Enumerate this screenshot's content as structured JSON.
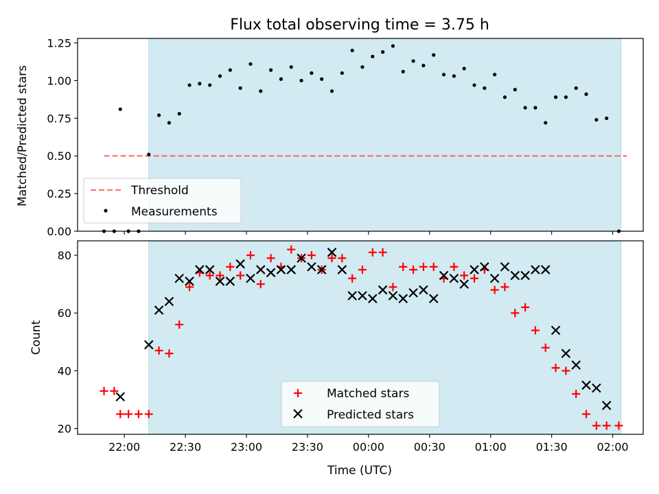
{
  "figure": {
    "title": "Flux total observing time = 3.75 h",
    "xlabel": "Time (UTC)"
  },
  "colors": {
    "band": "#add8e6",
    "threshold": "#ff7070",
    "measurement": "#000000",
    "matched": "#ff0000",
    "predicted": "#000000"
  },
  "chart_data": [
    {
      "type": "scatter",
      "panel": "top",
      "ylabel": "Matched/Predicted stars",
      "ylim": [
        0,
        1.28
      ],
      "yticks": [
        0,
        0.25,
        0.5,
        0.75,
        1.0,
        1.25
      ],
      "ytick_labels": [
        "0.00",
        "0.25",
        "0.50",
        "0.75",
        "1.00",
        "1.25"
      ],
      "xlim": [
        "21:37",
        "02:15"
      ],
      "xticks": [
        "22:00",
        "22:30",
        "23:00",
        "23:30",
        "00:00",
        "00:30",
        "01:00",
        "01:30",
        "02:00"
      ],
      "observing_window": [
        "22:12",
        "02:04"
      ],
      "threshold": {
        "name": "Threshold",
        "value": 0.5,
        "x_range": [
          "21:50",
          "02:07"
        ],
        "style": "dashed"
      },
      "legend": "lower-left",
      "series": [
        {
          "name": "Measurements",
          "x": [
            "21:50",
            "21:55",
            "21:58",
            "22:02",
            "22:07",
            "22:12",
            "22:17",
            "22:22",
            "22:27",
            "22:32",
            "22:37",
            "22:42",
            "22:47",
            "22:52",
            "22:57",
            "23:02",
            "23:07",
            "23:12",
            "23:17",
            "23:22",
            "23:27",
            "23:32",
            "23:37",
            "23:42",
            "23:47",
            "23:52",
            "23:57",
            "00:02",
            "00:07",
            "00:12",
            "00:17",
            "00:22",
            "00:27",
            "00:32",
            "00:37",
            "00:42",
            "00:47",
            "00:52",
            "00:57",
            "01:02",
            "01:07",
            "01:12",
            "01:17",
            "01:22",
            "01:27",
            "01:32",
            "01:37",
            "01:42",
            "01:47",
            "01:52",
            "01:57",
            "02:03"
          ],
          "y": [
            0,
            0,
            0.81,
            0,
            0,
            0.51,
            0.77,
            0.72,
            0.78,
            0.97,
            0.98,
            0.97,
            1.03,
            1.07,
            0.95,
            1.11,
            0.93,
            1.07,
            1.01,
            1.09,
            1.0,
            1.05,
            1.01,
            0.93,
            1.05,
            1.2,
            1.09,
            1.16,
            1.19,
            1.23,
            1.06,
            1.13,
            1.1,
            1.17,
            1.04,
            1.03,
            1.08,
            0.97,
            0.95,
            1.04,
            0.89,
            0.94,
            0.82,
            0.82,
            0.72,
            0.89,
            0.89,
            0.95,
            0.91,
            0.74,
            0.75,
            0
          ]
        }
      ]
    },
    {
      "type": "scatter",
      "panel": "bottom",
      "ylabel": "Count",
      "ylim": [
        18,
        85
      ],
      "yticks": [
        20,
        40,
        60,
        80
      ],
      "ytick_labels": [
        "20",
        "40",
        "60",
        "80"
      ],
      "xlim": [
        "21:37",
        "02:15"
      ],
      "xticks": [
        "22:00",
        "22:30",
        "23:00",
        "23:30",
        "00:00",
        "00:30",
        "01:00",
        "01:30",
        "02:00"
      ],
      "observing_window": [
        "22:12",
        "02:04"
      ],
      "legend": "lower-center",
      "series": [
        {
          "name": "Matched stars",
          "marker": "plus",
          "x": [
            "21:50",
            "21:55",
            "21:58",
            "22:02",
            "22:07",
            "22:12",
            "22:17",
            "22:22",
            "22:27",
            "22:32",
            "22:37",
            "22:42",
            "22:47",
            "22:52",
            "22:57",
            "23:02",
            "23:07",
            "23:12",
            "23:17",
            "23:22",
            "23:27",
            "23:32",
            "23:37",
            "23:42",
            "23:47",
            "23:52",
            "23:57",
            "00:02",
            "00:07",
            "00:12",
            "00:17",
            "00:22",
            "00:27",
            "00:32",
            "00:37",
            "00:42",
            "00:47",
            "00:52",
            "00:57",
            "01:02",
            "01:07",
            "01:12",
            "01:17",
            "01:22",
            "01:27",
            "01:32",
            "01:37",
            "01:42",
            "01:47",
            "01:52",
            "01:57",
            "02:03"
          ],
          "y": [
            33,
            33,
            25,
            25,
            25,
            25,
            47,
            46,
            56,
            69,
            74,
            73,
            73,
            76,
            73,
            80,
            70,
            79,
            76,
            82,
            79,
            80,
            75,
            79,
            79,
            72,
            75,
            81,
            81,
            69,
            76,
            75,
            76,
            76,
            72,
            76,
            73,
            72,
            75,
            68,
            69,
            60,
            62,
            54,
            48,
            41,
            40,
            32,
            25,
            21,
            21,
            21
          ]
        },
        {
          "name": "Predicted stars",
          "marker": "x",
          "x": [
            "21:58",
            "22:12",
            "22:17",
            "22:22",
            "22:27",
            "22:32",
            "22:37",
            "22:42",
            "22:47",
            "22:52",
            "22:57",
            "23:02",
            "23:07",
            "23:12",
            "23:17",
            "23:22",
            "23:27",
            "23:32",
            "23:37",
            "23:42",
            "23:47",
            "23:52",
            "23:57",
            "00:02",
            "00:07",
            "00:12",
            "00:17",
            "00:22",
            "00:27",
            "00:32",
            "00:37",
            "00:42",
            "00:47",
            "00:52",
            "00:57",
            "01:02",
            "01:07",
            "01:12",
            "01:17",
            "01:22",
            "01:27",
            "01:32",
            "01:37",
            "01:42",
            "01:47",
            "01:52",
            "01:57"
          ],
          "y": [
            31,
            49,
            61,
            64,
            72,
            71,
            75,
            75,
            71,
            71,
            77,
            72,
            75,
            74,
            75,
            75,
            79,
            76,
            75,
            81,
            75,
            66,
            66,
            65,
            68,
            66,
            65,
            67,
            68,
            65,
            73,
            72,
            70,
            75,
            76,
            72,
            76,
            73,
            73,
            75,
            75,
            54,
            46,
            42,
            35,
            34,
            28
          ]
        }
      ]
    }
  ]
}
